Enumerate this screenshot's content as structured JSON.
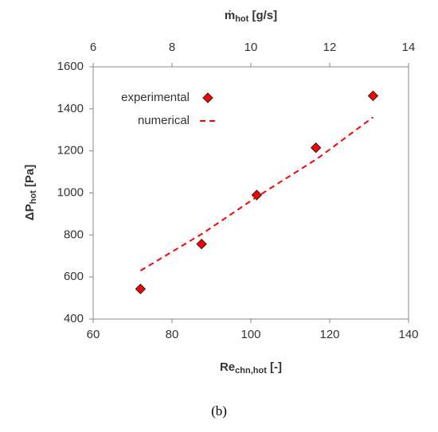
{
  "chart_data": {
    "type": "scatter",
    "x2label": {
      "main": "ṁ",
      "sub": "hot",
      "unit": " [g/s]"
    },
    "xlabel": {
      "main": "Re",
      "sub": "chn,hot",
      "unit": " [-]"
    },
    "ylabel": {
      "main": "ΔP",
      "sub": "hot",
      "unit": " [Pa]"
    },
    "caption": "(b)",
    "xlim": [
      60,
      140
    ],
    "xticks": [
      60,
      80,
      100,
      120,
      140
    ],
    "x2lim": [
      6,
      14
    ],
    "x2ticks": [
      6,
      8,
      10,
      12,
      14
    ],
    "ylim": [
      400,
      1600
    ],
    "yticks": [
      400,
      600,
      800,
      1000,
      1200,
      1400,
      1600
    ],
    "grid": false,
    "legend": "upper left",
    "series": [
      {
        "name": "experimental",
        "color": "#ff0000",
        "marker": "diamond",
        "x": [
          72,
          87.5,
          101.5,
          116.5,
          131
        ],
        "values": [
          543,
          757,
          990,
          1215,
          1462
        ]
      },
      {
        "name": "numerical",
        "color": "#ff0000",
        "style": "dashed",
        "x": [
          72,
          88,
          101,
          117,
          131
        ],
        "values": [
          630,
          810,
          975,
          1165,
          1360
        ]
      }
    ]
  }
}
